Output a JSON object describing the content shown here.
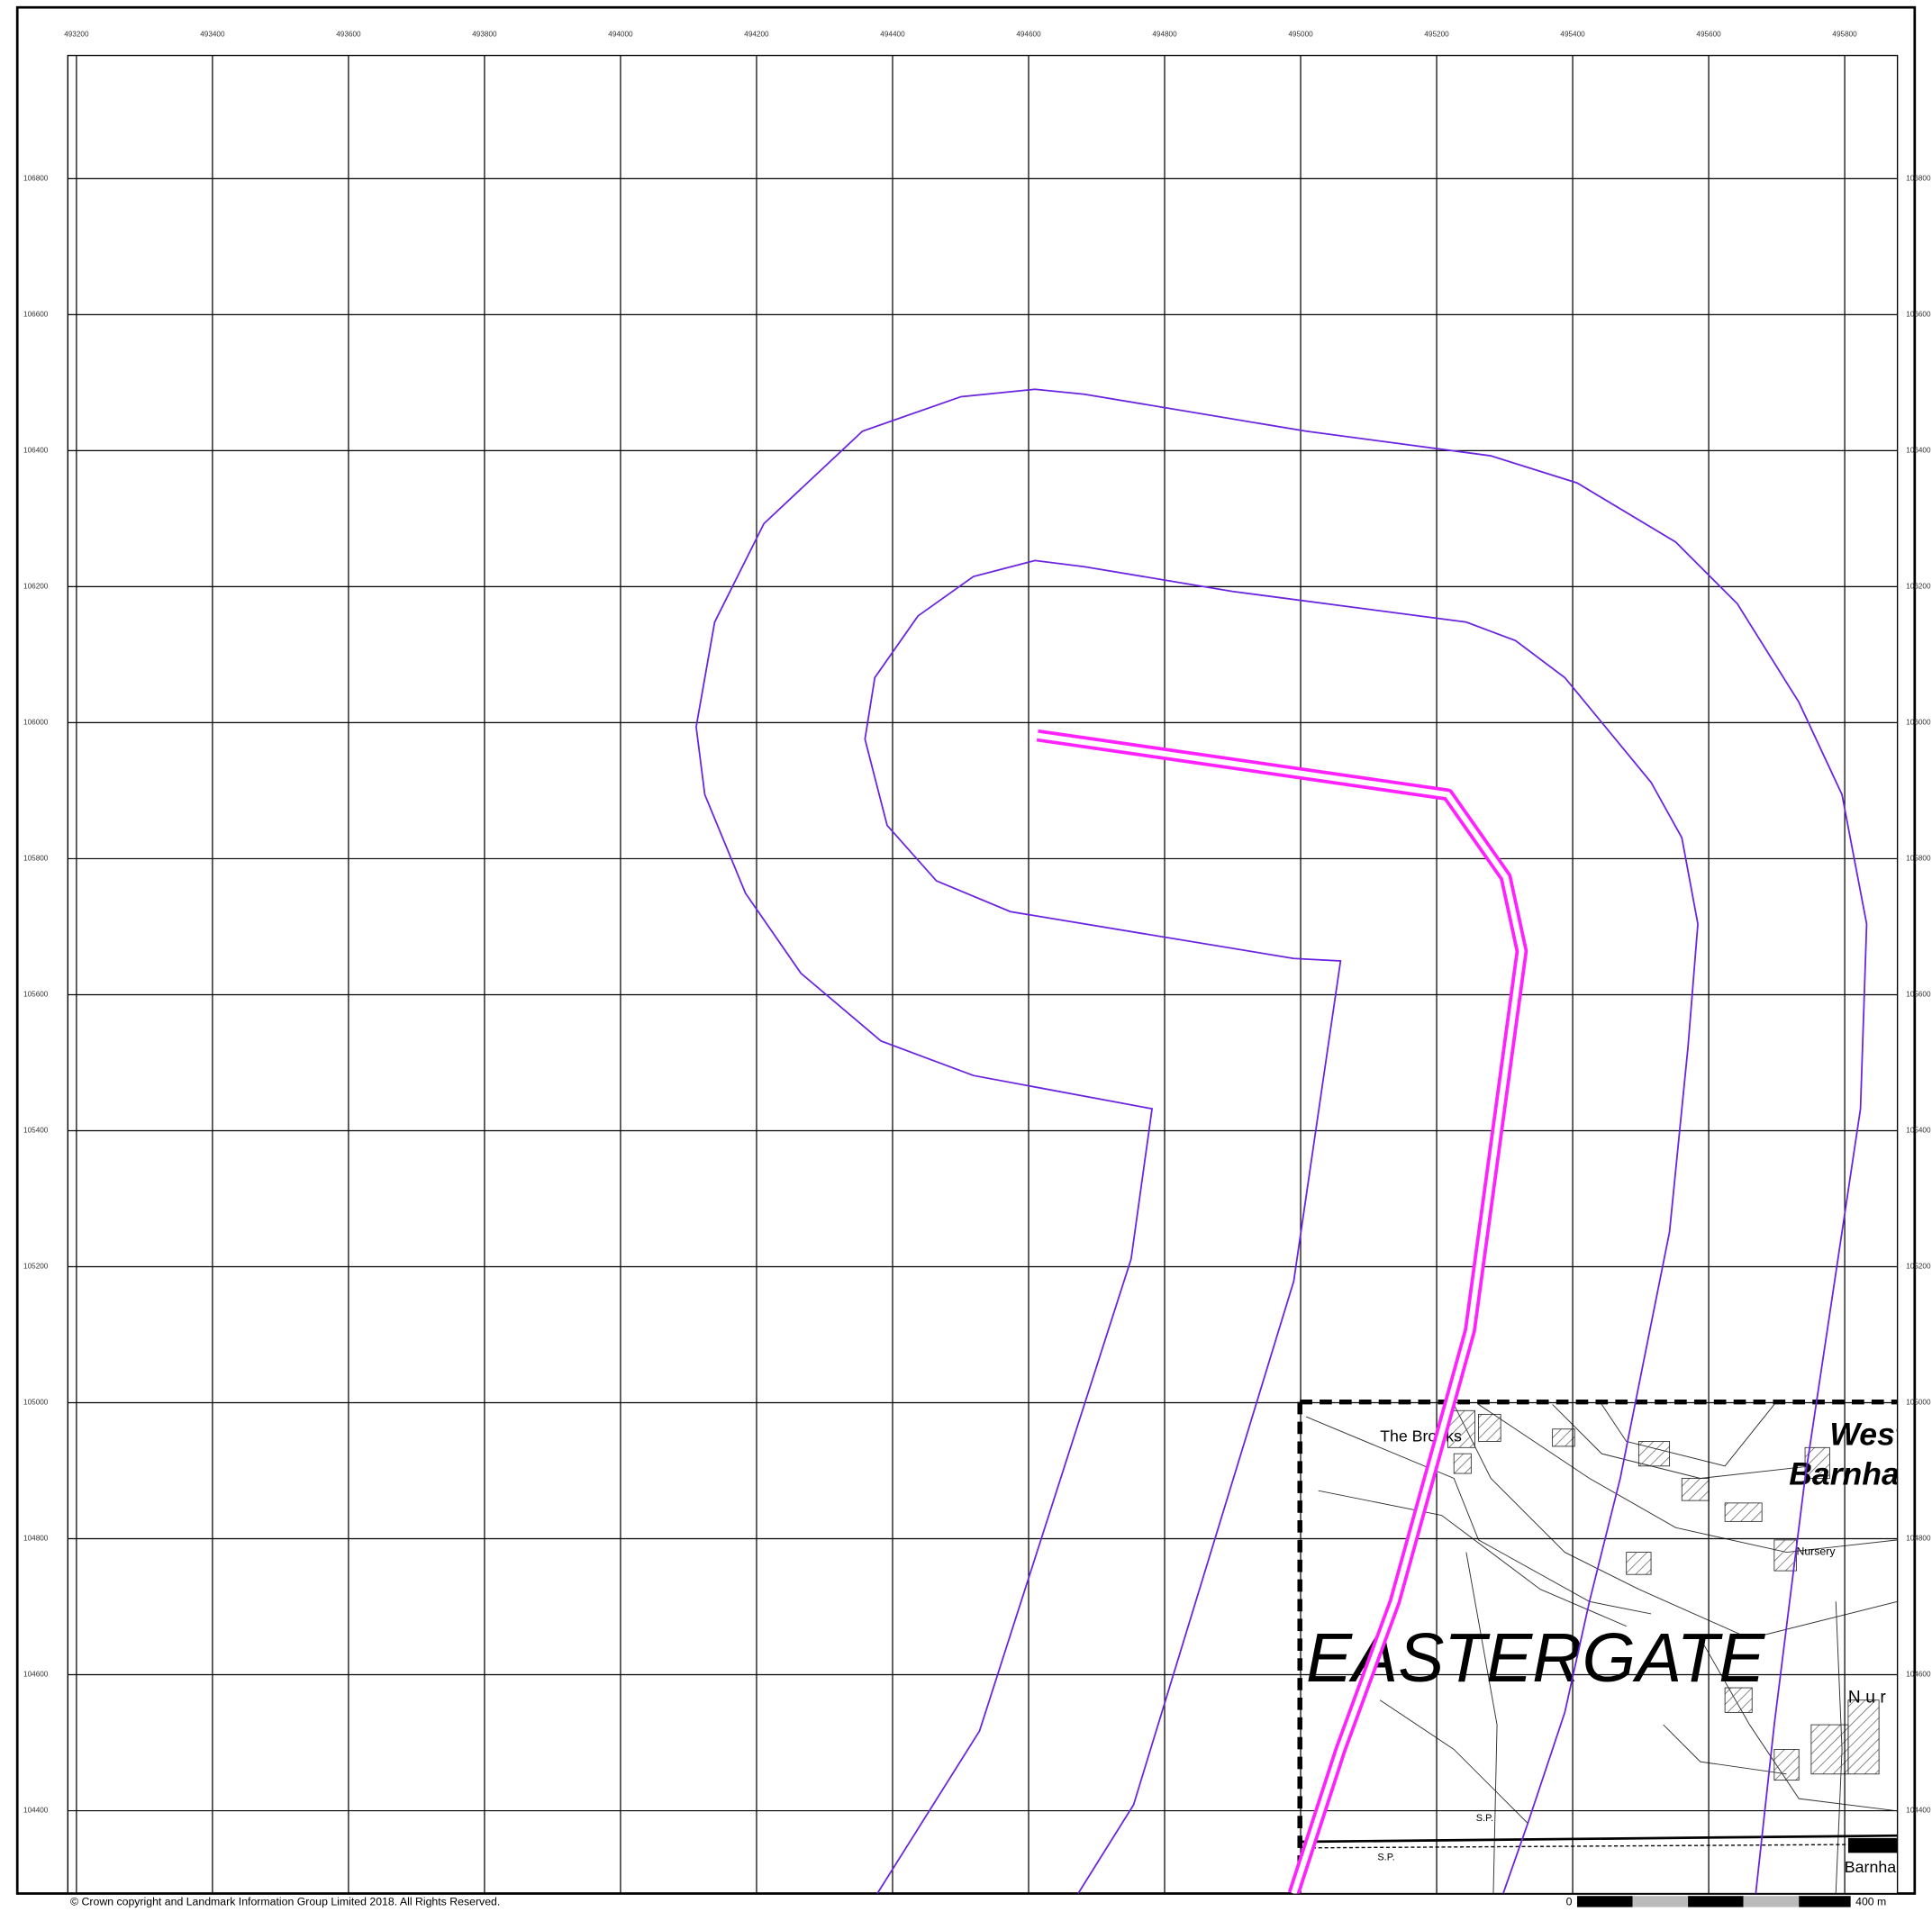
{
  "map": {
    "top_labels": [
      493200,
      493400,
      493600,
      493800,
      494000,
      494200,
      494400,
      494600,
      494800,
      495000,
      495200,
      495400,
      495600,
      495800
    ],
    "left_labels": [
      106800,
      106600,
      106400,
      106200,
      106000,
      105800,
      105600,
      105400,
      105200,
      105000,
      104800,
      104600,
      104400
    ],
    "place_names": [
      "The Brooks",
      "West",
      "Barnham",
      "Nursery",
      "EASTERGATE",
      "Nur",
      "Barnham",
      "S.P.",
      "S.P."
    ],
    "copyright": "© Crown copyright and Landmark Information Group Limited 2018. All Rights Reserved.",
    "scale_start": "0",
    "scale_end": "400 m"
  }
}
